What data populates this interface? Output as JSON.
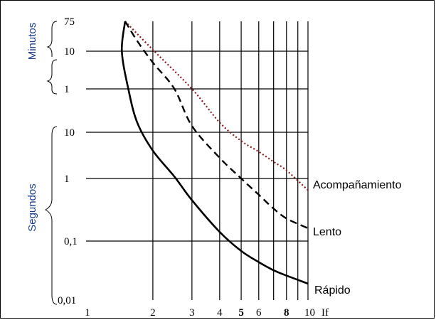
{
  "chart_data": {
    "type": "line",
    "title": "",
    "x_axis": {
      "label": "If",
      "scale": "log",
      "range": [
        1,
        10
      ],
      "ticks": [
        {
          "value": 1,
          "label": "1",
          "bold": false
        },
        {
          "value": 2,
          "label": "2",
          "bold": false
        },
        {
          "value": 3,
          "label": "3",
          "bold": false
        },
        {
          "value": 4,
          "label": "4",
          "bold": false
        },
        {
          "value": 5,
          "label": "5",
          "bold": true
        },
        {
          "value": 6,
          "label": "6",
          "bold": false
        },
        {
          "value": 8,
          "label": "8",
          "bold": true
        },
        {
          "value": 10,
          "label": "10",
          "bold": false
        }
      ]
    },
    "y_axis": {
      "scale": "log",
      "ticks_minutes": [
        {
          "value": 75,
          "label": "75"
        },
        {
          "value": 10,
          "label": "10"
        },
        {
          "value": 1,
          "label": "1"
        }
      ],
      "ticks_seconds": [
        {
          "value": 10,
          "label": "10"
        },
        {
          "value": 1,
          "label": "1"
        },
        {
          "value": 0.1,
          "label": "0,1"
        },
        {
          "value": 0.01,
          "label": "0,01"
        }
      ],
      "group_labels": {
        "minutes": "Minutos",
        "seconds": "Segundos"
      }
    },
    "grid": true,
    "series": [
      {
        "name": "Acompañamiento",
        "style": "dotted",
        "color": "#8b1a1a",
        "points": [
          [
            1.5,
            4500
          ],
          [
            2,
            660
          ],
          [
            3,
            60
          ],
          [
            4,
            15
          ],
          [
            5,
            6.5
          ],
          [
            6,
            3.8
          ],
          [
            7,
            2.3
          ],
          [
            8,
            1.5
          ],
          [
            10,
            0.65
          ]
        ]
      },
      {
        "name": "Lento",
        "style": "dashed",
        "color": "#000000",
        "points": [
          [
            1.5,
            4500
          ],
          [
            1.7,
            1200
          ],
          [
            2,
            300
          ],
          [
            2.5,
            60
          ],
          [
            3,
            13
          ],
          [
            4,
            2.8
          ],
          [
            5,
            1
          ],
          [
            6,
            0.55
          ],
          [
            7,
            0.33
          ],
          [
            8,
            0.23
          ],
          [
            10,
            0.16
          ]
        ]
      },
      {
        "name": "Rápido",
        "style": "solid",
        "color": "#000000",
        "points": [
          [
            1.5,
            4500
          ],
          [
            1.45,
            600
          ],
          [
            1.55,
            60
          ],
          [
            1.7,
            15
          ],
          [
            2,
            4
          ],
          [
            2.5,
            1.1
          ],
          [
            3,
            0.45
          ],
          [
            4,
            0.14
          ],
          [
            5,
            0.068
          ],
          [
            6,
            0.044
          ],
          [
            7,
            0.032
          ],
          [
            8,
            0.026
          ],
          [
            10,
            0.019
          ]
        ]
      }
    ]
  }
}
